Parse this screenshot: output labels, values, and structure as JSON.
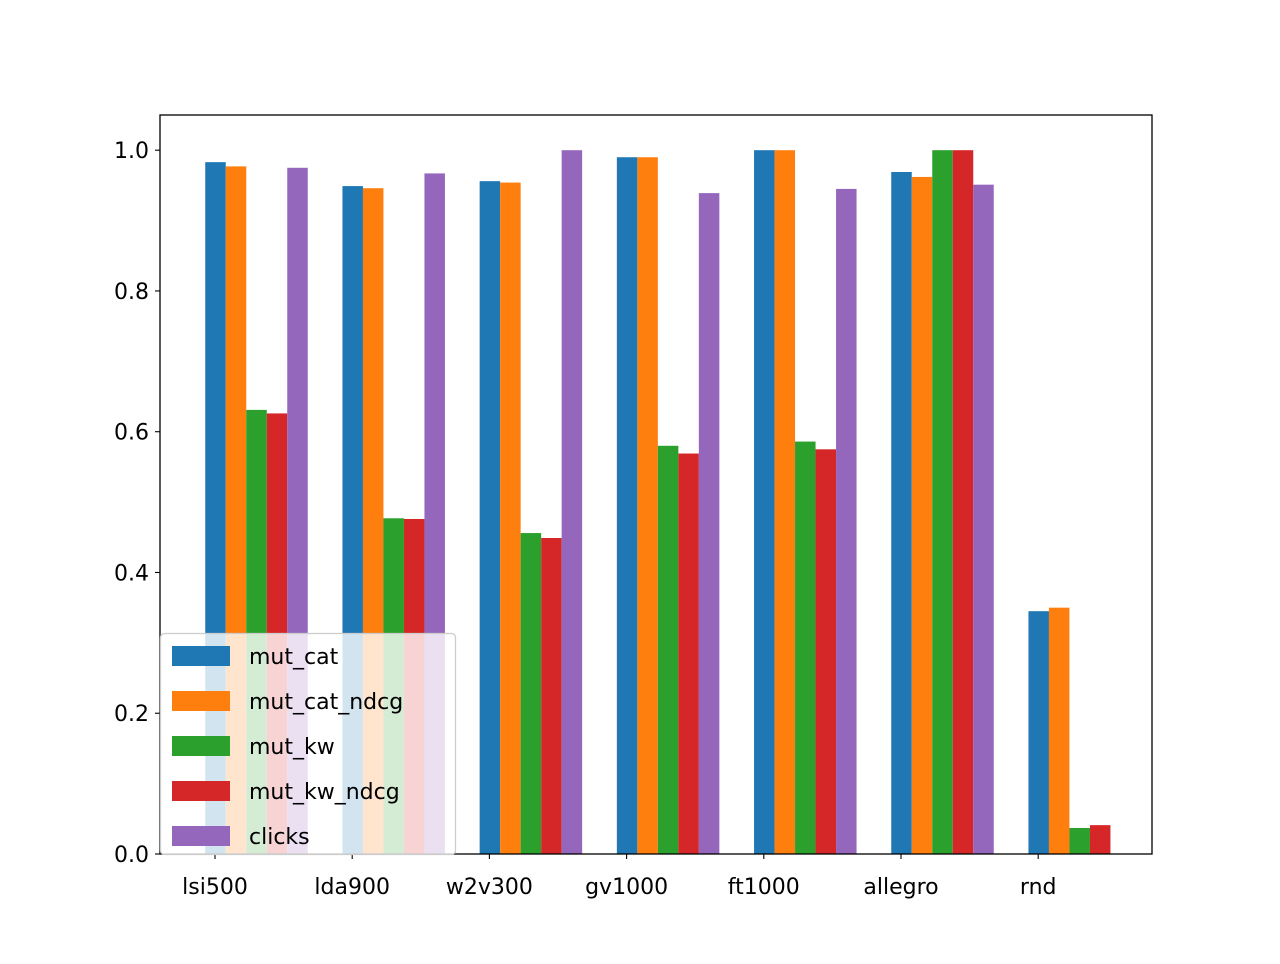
{
  "chart_data": {
    "type": "bar",
    "title": "",
    "xlabel": "",
    "ylabel": "",
    "categories": [
      "lsi500",
      "lda900",
      "w2v300",
      "gv1000",
      "ft1000",
      "allegro",
      "rnd"
    ],
    "series": [
      {
        "name": "mut_cat",
        "color": "#1f77b4",
        "values": [
          0.983,
          0.949,
          0.956,
          0.99,
          1.0,
          0.969,
          0.345
        ]
      },
      {
        "name": "mut_cat_ndcg",
        "color": "#ff7f0e",
        "values": [
          0.977,
          0.946,
          0.954,
          0.99,
          1.0,
          0.962,
          0.35
        ]
      },
      {
        "name": "mut_kw",
        "color": "#2ca02c",
        "values": [
          0.631,
          0.477,
          0.456,
          0.58,
          0.586,
          1.0,
          0.037
        ]
      },
      {
        "name": "mut_kw_ndcg",
        "color": "#d62728",
        "values": [
          0.626,
          0.476,
          0.449,
          0.569,
          0.575,
          1.0,
          0.041
        ]
      },
      {
        "name": "clicks",
        "color": "#9467bd",
        "values": [
          0.975,
          0.967,
          1.0,
          0.939,
          0.945,
          0.951,
          0.0
        ]
      }
    ],
    "ylim": [
      0,
      1.05
    ],
    "yticks": [
      "0.0",
      "0.2",
      "0.4",
      "0.6",
      "0.8",
      "1.0"
    ],
    "legend": "lower-left",
    "grid": false
  }
}
